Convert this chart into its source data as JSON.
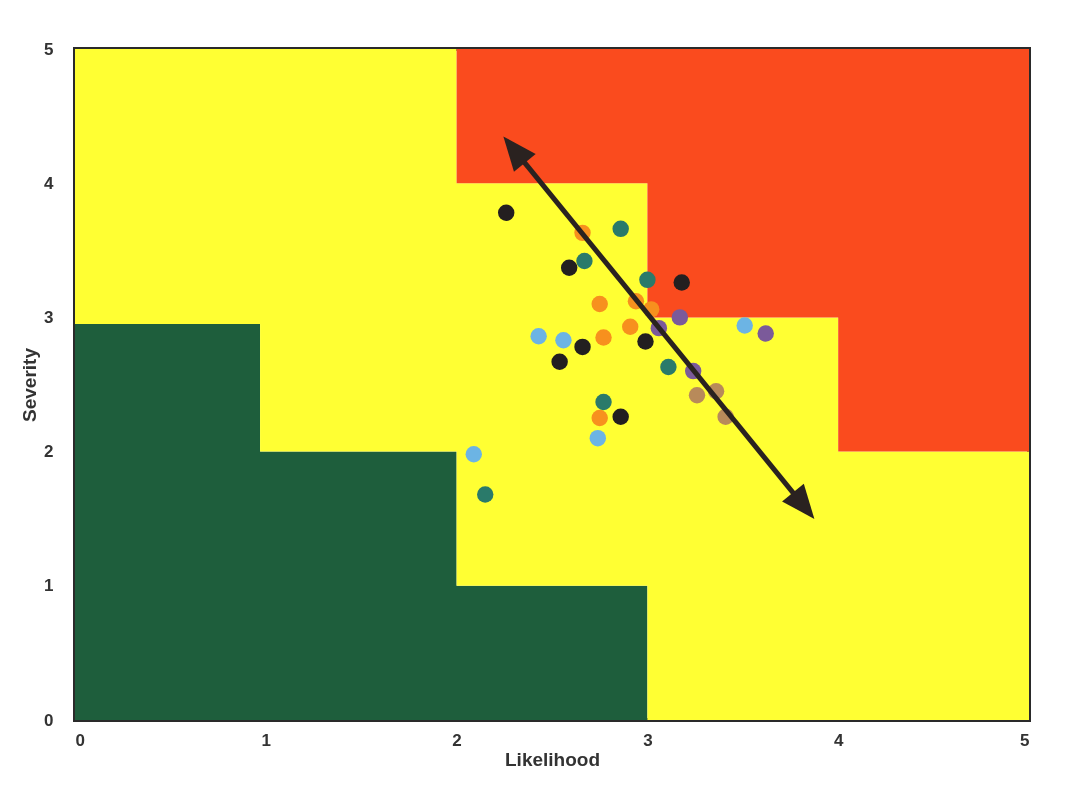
{
  "chart_data": {
    "type": "scatter",
    "xlabel": "Likelihood",
    "ylabel": "Severity",
    "xlim": [
      0,
      5
    ],
    "ylim": [
      0,
      5
    ],
    "xticks": [
      0,
      1,
      2,
      3,
      4,
      5
    ],
    "yticks": [
      0,
      1,
      2,
      3,
      4,
      5
    ],
    "grid": false,
    "stacked": true,
    "series": [
      {
        "type": "area",
        "color": "#1e5e3c",
        "x": [
          0,
          0.97,
          2,
          3,
          4,
          5
        ],
        "values": [
          2.95,
          2,
          1,
          0,
          0,
          0
        ]
      },
      {
        "type": "area",
        "color": "#ffff33",
        "x": [
          0,
          0.97,
          2,
          3,
          4,
          5
        ],
        "values": [
          2.05,
          3,
          3,
          3,
          2,
          2
        ]
      },
      {
        "type": "area",
        "color": "#fa4b1e",
        "x": [
          0,
          0.97,
          2,
          3,
          4,
          5
        ],
        "values": [
          0,
          0,
          1,
          2,
          3,
          3
        ]
      },
      {
        "marker": "circle",
        "color": "#231f20",
        "x": [
          2.26,
          2.59,
          3.18,
          2.54,
          2.66,
          2.99,
          2.86
        ],
        "values": [
          3.78,
          3.37,
          3.26,
          2.67,
          2.78,
          2.82,
          2.26
        ]
      },
      {
        "marker": "circle",
        "color": "#f7901e",
        "x": [
          2.66,
          2.75,
          2.94,
          3.02,
          2.91,
          2.77,
          2.75
        ],
        "values": [
          3.63,
          3.1,
          3.12,
          3.06,
          2.93,
          2.85,
          2.25
        ]
      },
      {
        "marker": "circle",
        "color": "#2a7a6a",
        "x": [
          2.86,
          2.67,
          3.0,
          3.11,
          2.77,
          2.15
        ],
        "values": [
          3.66,
          3.42,
          3.28,
          2.63,
          2.37,
          1.68
        ]
      },
      {
        "marker": "circle",
        "color": "#6cb4e4",
        "x": [
          2.43,
          2.56,
          3.51,
          2.74,
          2.09
        ],
        "values": [
          2.86,
          2.83,
          2.94,
          2.1,
          1.98
        ]
      },
      {
        "marker": "circle",
        "color": "#7b5a9a",
        "x": [
          3.06,
          3.17,
          3.24,
          3.62
        ],
        "values": [
          2.92,
          3.0,
          2.6,
          2.88
        ]
      },
      {
        "marker": "circle",
        "color": "#b88a5a",
        "x": [
          3.26,
          3.36,
          3.41
        ],
        "values": [
          2.42,
          2.45,
          2.26
        ]
      }
    ]
  }
}
